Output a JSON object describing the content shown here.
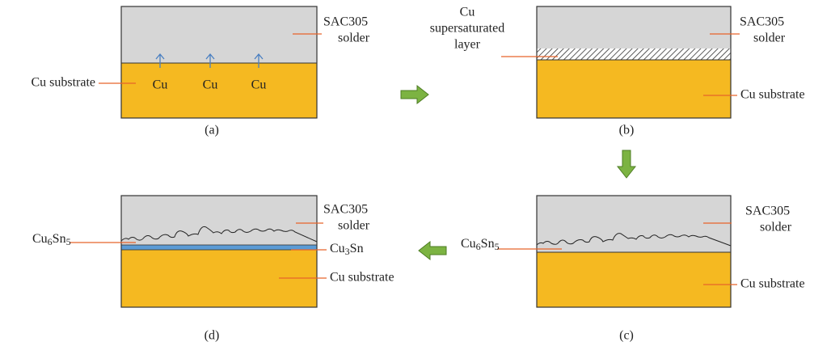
{
  "panel_a": {
    "caption": "(a)",
    "solder": [
      "SAC305",
      "solder"
    ],
    "substrate": "Cu substrate",
    "flux": [
      "Cu",
      "Cu",
      "Cu"
    ]
  },
  "panel_b": {
    "caption": "(b)",
    "solder": [
      "SAC305",
      "solder"
    ],
    "layer": [
      "Cu",
      "supersaturated",
      "layer"
    ],
    "substrate": "Cu substrate"
  },
  "panel_c": {
    "caption": "(c)",
    "solder": [
      "SAC305",
      "solder"
    ],
    "imc": [
      "Cu",
      "6",
      "Sn",
      "5"
    ],
    "substrate": "Cu substrate"
  },
  "panel_d": {
    "caption": "(d)",
    "solder": [
      "SAC305",
      "solder"
    ],
    "imc": [
      "Cu",
      "6",
      "Sn",
      "5"
    ],
    "imc2": [
      "Cu",
      "3",
      "Sn"
    ],
    "substrate": "Cu substrate"
  }
}
